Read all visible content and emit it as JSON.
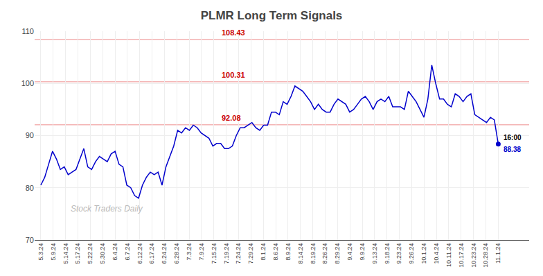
{
  "chart_data": {
    "type": "line",
    "title": "PLMR Long Term Signals",
    "color": "#0000CC",
    "x": [
      0,
      1,
      2,
      3,
      4,
      5,
      6,
      7,
      8,
      9,
      10,
      11,
      12,
      13,
      14,
      15,
      16,
      17,
      18,
      19,
      20,
      21,
      22,
      23,
      24,
      25,
      26,
      27,
      28,
      29,
      30,
      31,
      32,
      33,
      34,
      35,
      36,
      37,
      38,
      39,
      40,
      41,
      42,
      43,
      44,
      45,
      46,
      47,
      48,
      49,
      50,
      51,
      52,
      53,
      54,
      55,
      56,
      57,
      58,
      59,
      60,
      61,
      62,
      63,
      64,
      65,
      66,
      67,
      68,
      69,
      70,
      71,
      72,
      73,
      74,
      75,
      76,
      77,
      78,
      79,
      80,
      81,
      82,
      83,
      84,
      85,
      86,
      87,
      88,
      89,
      90,
      91,
      92,
      93,
      94,
      95,
      96,
      97,
      98,
      99,
      100,
      101,
      102,
      103,
      104,
      105,
      106,
      107,
      108,
      109,
      110,
      111,
      112,
      113,
      114,
      115,
      116,
      117
    ],
    "values": [
      80.5,
      82.0,
      84.5,
      87.0,
      85.5,
      83.5,
      84.0,
      82.5,
      83.0,
      83.5,
      85.5,
      87.5,
      84.0,
      83.5,
      85.0,
      86.0,
      85.5,
      85.0,
      86.5,
      87.0,
      84.5,
      84.0,
      80.5,
      80.0,
      78.5,
      78.0,
      80.5,
      82.0,
      83.0,
      82.5,
      83.0,
      80.5,
      84.0,
      86.0,
      88.0,
      91.0,
      90.5,
      91.5,
      91.0,
      92.0,
      91.5,
      90.5,
      90.0,
      89.5,
      88.0,
      88.5,
      88.5,
      87.5,
      87.5,
      88.0,
      90.0,
      91.5,
      91.5,
      92.0,
      92.5,
      91.5,
      91.0,
      92.0,
      92.0,
      94.5,
      94.5,
      94.0,
      96.5,
      96.0,
      97.5,
      99.5,
      99.0,
      98.5,
      97.5,
      96.5,
      95.0,
      96.0,
      95.0,
      94.5,
      94.5,
      96.0,
      97.0,
      96.5,
      96.0,
      94.5,
      95.0,
      96.0,
      97.0,
      97.5,
      96.5,
      95.0,
      96.5,
      97.0,
      96.5,
      97.5,
      95.5,
      95.5,
      95.5,
      95.0,
      98.5,
      97.5,
      96.5,
      95.0,
      93.5,
      97.0,
      103.5,
      100.0,
      97.0,
      97.0,
      96.0,
      95.5,
      98.0,
      97.5,
      96.5,
      97.5,
      98.0,
      94.0,
      93.5,
      93.0,
      92.5,
      93.5,
      93.0,
      88.38
    ],
    "xlim": [
      -1.581081081081081,
      124.9054054054054
    ],
    "xticks": [
      {
        "value": 0,
        "label": "5.3.24"
      },
      {
        "value": 3.162162162162162,
        "label": "5.9.24"
      },
      {
        "value": 6.324324324324325,
        "label": "5.14.24"
      },
      {
        "value": 9.486486486486486,
        "label": "5.17.24"
      },
      {
        "value": 12.64864864864865,
        "label": "5.22.24"
      },
      {
        "value": 15.81081081081081,
        "label": "5.30.24"
      },
      {
        "value": 18.97297297297297,
        "label": "6.4.24"
      },
      {
        "value": 22.13513513513514,
        "label": "6.7.24"
      },
      {
        "value": 25.2972972972973,
        "label": "6.12.24"
      },
      {
        "value": 28.45945945945946,
        "label": "6.17.24"
      },
      {
        "value": 31.62162162162162,
        "label": "6.24.24"
      },
      {
        "value": 34.78378378378378,
        "label": "6.28.24"
      },
      {
        "value": 37.94594594594595,
        "label": "7.3.24"
      },
      {
        "value": 41.10810810810811,
        "label": "7.9.24"
      },
      {
        "value": 44.27027027027027,
        "label": "7.15.24"
      },
      {
        "value": 47.43243243243243,
        "label": "7.19.24"
      },
      {
        "value": 50.5945945945946,
        "label": "7.24.24"
      },
      {
        "value": 53.75675675675676,
        "label": "7.29.24"
      },
      {
        "value": 56.91891891891892,
        "label": "8.1.24"
      },
      {
        "value": 60.08108108108108,
        "label": "8.6.24"
      },
      {
        "value": 63.24324324324324,
        "label": "8.9.24"
      },
      {
        "value": 66.4054054054054,
        "label": "8.14.24"
      },
      {
        "value": 69.56756756756756,
        "label": "8.19.24"
      },
      {
        "value": 72.72972972972973,
        "label": "8.26.24"
      },
      {
        "value": 75.89189189189189,
        "label": "8.29.24"
      },
      {
        "value": 79.05405405405405,
        "label": "9.4.24"
      },
      {
        "value": 82.21621621621621,
        "label": "9.9.24"
      },
      {
        "value": 85.37837837837837,
        "label": "9.13.24"
      },
      {
        "value": 88.54054054054055,
        "label": "9.18.24"
      },
      {
        "value": 91.70270270270271,
        "label": "9.23.24"
      },
      {
        "value": 94.86486486486487,
        "label": "9.26.24"
      },
      {
        "value": 98.02702702702703,
        "label": "10.1.24"
      },
      {
        "value": 101.1891891891892,
        "label": "10.4.24"
      },
      {
        "value": 104.3513513513514,
        "label": "10.11.24"
      },
      {
        "value": 107.5135135135135,
        "label": "10.17.24"
      },
      {
        "value": 110.6756756756757,
        "label": "10.23.24"
      },
      {
        "value": 113.8378378378378,
        "label": "10.28.24"
      },
      {
        "value": 117,
        "label": "11.1.24"
      }
    ],
    "ylim": [
      70,
      110
    ],
    "yticks": [
      70,
      80,
      90,
      100,
      110
    ],
    "grid": true,
    "hlines": [
      {
        "value": 108.43,
        "label": "108.43"
      },
      {
        "value": 100.31,
        "label": "100.31"
      },
      {
        "value": 92.08,
        "label": "92.08"
      }
    ],
    "hline_color": "#f0a0a0",
    "hline_label_color": "#cc0000",
    "end_labels": [
      {
        "text": "16:00",
        "color": "#000000"
      },
      {
        "text": "88.38",
        "color": "#0000CC"
      }
    ],
    "watermark": {
      "text": "Stock Traders Daily",
      "color": "#bbbbbb"
    }
  }
}
